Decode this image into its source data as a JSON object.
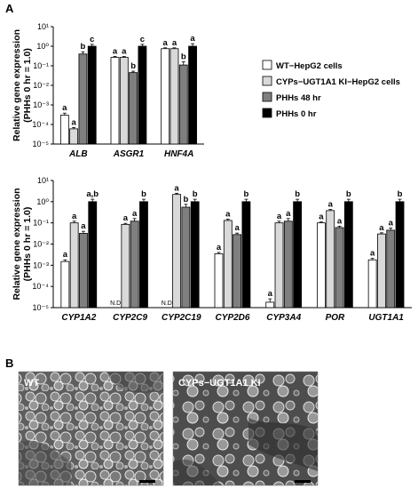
{
  "panel_a_label": "A",
  "panel_b_label": "B",
  "legend": [
    {
      "label": "WT−HepG2 cells",
      "color": "#ffffff"
    },
    {
      "label": "CYPs−UGT1A1 KI−HepG2 cells",
      "color": "#d9d9d9"
    },
    {
      "label": "PHHs 48 hr",
      "color": "#7f7f7f"
    },
    {
      "label": "PHHs 0 hr",
      "color": "#000000"
    }
  ],
  "micrographs": [
    {
      "label": "WT"
    },
    {
      "label": "CYPs−UGT1A1 KI"
    }
  ],
  "chart_data": [
    {
      "type": "bar",
      "ylabel": [
        "Relative gene expression",
        "(PHHs 0 hr = 1.0)"
      ],
      "yscale": "log",
      "ylim": [
        1e-05,
        10
      ],
      "yticks": [
        "10⁻⁵",
        "10⁻⁴",
        "10⁻³",
        "10⁻²",
        "10⁻¹",
        "10⁰",
        "10¹"
      ],
      "categories": [
        "ALB",
        "ASGR1",
        "HNF4A"
      ],
      "series": [
        {
          "name": "WT−HepG2 cells",
          "values": [
            0.0003,
            0.27,
            0.75
          ],
          "errors": [
            8e-05,
            0.03,
            0.08
          ],
          "labels": [
            "a",
            "a",
            "a"
          ]
        },
        {
          "name": "CYPs−UGT1A1 KI−HepG2 cells",
          "values": [
            6e-05,
            0.27,
            0.75
          ],
          "errors": [
            1e-05,
            0.03,
            0.08
          ],
          "labels": [
            "a",
            "a",
            "a"
          ]
        },
        {
          "name": "PHHs 48 hr",
          "values": [
            0.4,
            0.045,
            0.11
          ],
          "errors": [
            0.12,
            0.008,
            0.05
          ],
          "labels": [
            "b",
            "b",
            "b"
          ]
        },
        {
          "name": "PHHs 0 hr",
          "values": [
            1.0,
            1.0,
            1.0
          ],
          "errors": [
            0.25,
            0.25,
            0.35
          ],
          "labels": [
            "c",
            "c",
            "a"
          ]
        }
      ]
    },
    {
      "type": "bar",
      "ylabel": [
        "Relative gene expression",
        "(PHHs 0 hr = 1.0)"
      ],
      "yscale": "log",
      "ylim": [
        1e-05,
        10
      ],
      "yticks": [
        "10⁻⁵",
        "10⁻⁴",
        "10⁻³",
        "10⁻²",
        "10⁻¹",
        "10⁰",
        "10¹"
      ],
      "categories": [
        "CYP1A2",
        "CYP2C9",
        "CYP2C19",
        "CYP2D6",
        "CYP3A4",
        "POR",
        "UGT1A1"
      ],
      "series": [
        {
          "name": "WT−HepG2 cells",
          "values": [
            0.0015,
            null,
            null,
            0.0035,
            1.8e-05,
            0.1,
            0.0018
          ],
          "errors": [
            0.0003,
            0,
            0,
            0.0005,
            8e-06,
            0.01,
            0.0003
          ],
          "labels": [
            "a",
            "N.D.",
            "N.D.",
            "a",
            "a",
            "a",
            "a"
          ]
        },
        {
          "name": "CYPs−UGT1A1 KI−HepG2 cells",
          "values": [
            0.1,
            0.085,
            2.2,
            0.13,
            0.1,
            0.38,
            0.03
          ],
          "errors": [
            0.02,
            0.01,
            0.3,
            0.02,
            0.02,
            0.05,
            0.004
          ],
          "labels": [
            "a",
            "a",
            "a",
            "a",
            "a",
            "a",
            "a"
          ]
        },
        {
          "name": "PHHs 48 hr",
          "values": [
            0.032,
            0.12,
            0.55,
            0.028,
            0.12,
            0.06,
            0.045
          ],
          "errors": [
            0.008,
            0.04,
            0.2,
            0.005,
            0.04,
            0.01,
            0.012
          ],
          "labels": [
            "a",
            "a",
            "b",
            "a",
            "a",
            "a",
            "a"
          ]
        },
        {
          "name": "PHHs 0 hr",
          "values": [
            1.0,
            1.0,
            1.0,
            1.0,
            1.0,
            1.0,
            1.0
          ],
          "errors": [
            0.3,
            0.3,
            0.3,
            0.3,
            0.3,
            0.3,
            0.3
          ],
          "labels": [
            "a,b",
            "b",
            "b",
            "b",
            "b",
            "b",
            "b"
          ]
        }
      ]
    }
  ]
}
